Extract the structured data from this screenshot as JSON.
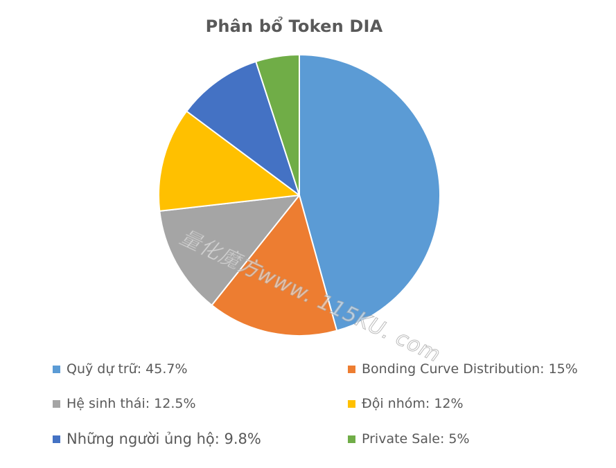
{
  "chart_data": {
    "type": "pie",
    "title": "Phân bổ Token DIA",
    "slices": [
      {
        "label": "Quỹ dự trữ",
        "value": 45.7,
        "legend_text": "Quỹ dự trữ: 45.7%",
        "color": "#5B9BD5"
      },
      {
        "label": "Bonding Curve Distribution",
        "value": 15,
        "legend_text": "Bonding Curve Distribution: 15%",
        "color": "#ED7D31"
      },
      {
        "label": "Hệ sinh thái",
        "value": 12.5,
        "legend_text": "Hệ sinh thái: 12.5%",
        "color": "#A5A5A5"
      },
      {
        "label": "Đội nhóm",
        "value": 12,
        "legend_text": "Đội nhóm: 12%",
        "color": "#FFC000"
      },
      {
        "label": "Những người ủng hộ",
        "value": 9.8,
        "legend_text": "Những người ủng hộ: 9.8%",
        "color": "#4472C4"
      },
      {
        "label": "Private Sale",
        "value": 5,
        "legend_text": "Private Sale: 5%",
        "color": "#70AD47"
      }
    ],
    "legend_position": "bottom",
    "start_angle": "12 o'clock, clockwise"
  },
  "watermark": "量化魔方www. 115KU. com"
}
